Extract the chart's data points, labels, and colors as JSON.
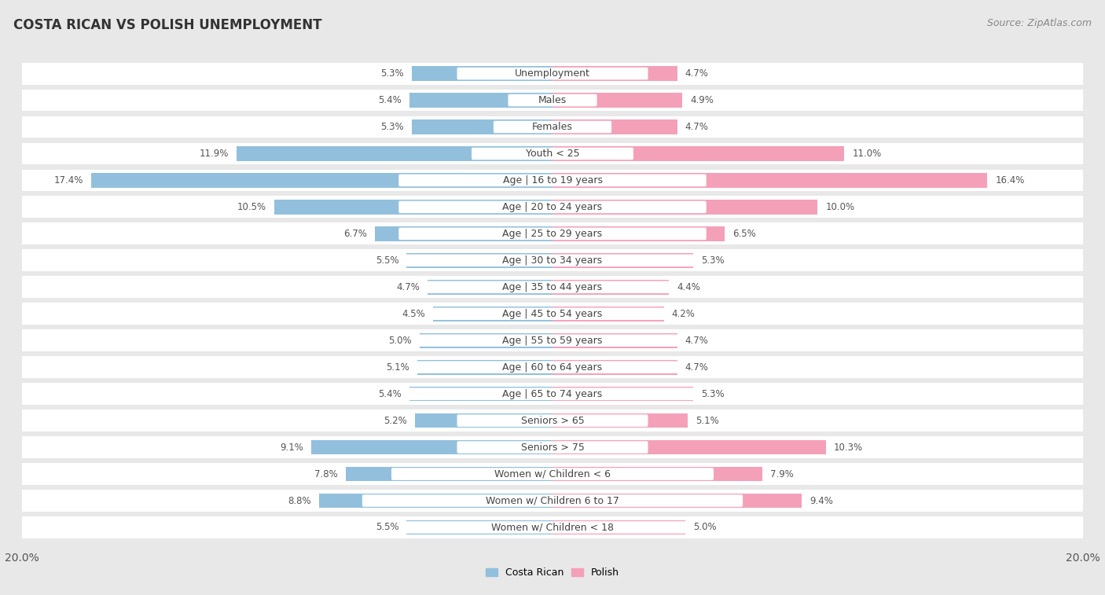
{
  "title": "COSTA RICAN VS POLISH UNEMPLOYMENT",
  "source": "Source: ZipAtlas.com",
  "categories": [
    "Unemployment",
    "Males",
    "Females",
    "Youth < 25",
    "Age | 16 to 19 years",
    "Age | 20 to 24 years",
    "Age | 25 to 29 years",
    "Age | 30 to 34 years",
    "Age | 35 to 44 years",
    "Age | 45 to 54 years",
    "Age | 55 to 59 years",
    "Age | 60 to 64 years",
    "Age | 65 to 74 years",
    "Seniors > 65",
    "Seniors > 75",
    "Women w/ Children < 6",
    "Women w/ Children 6 to 17",
    "Women w/ Children < 18"
  ],
  "costa_rican": [
    5.3,
    5.4,
    5.3,
    11.9,
    17.4,
    10.5,
    6.7,
    5.5,
    4.7,
    4.5,
    5.0,
    5.1,
    5.4,
    5.2,
    9.1,
    7.8,
    8.8,
    5.5
  ],
  "polish": [
    4.7,
    4.9,
    4.7,
    11.0,
    16.4,
    10.0,
    6.5,
    5.3,
    4.4,
    4.2,
    4.7,
    4.7,
    5.3,
    5.1,
    10.3,
    7.9,
    9.4,
    5.0
  ],
  "costa_rican_color": "#92c0dc",
  "polish_color": "#f4a0b8",
  "background_color": "#e8e8e8",
  "row_bg_color": "#ffffff",
  "x_max": 20.0,
  "label_fontsize": 9,
  "title_fontsize": 12,
  "source_fontsize": 9,
  "legend_fontsize": 9,
  "value_fontsize": 8.5
}
